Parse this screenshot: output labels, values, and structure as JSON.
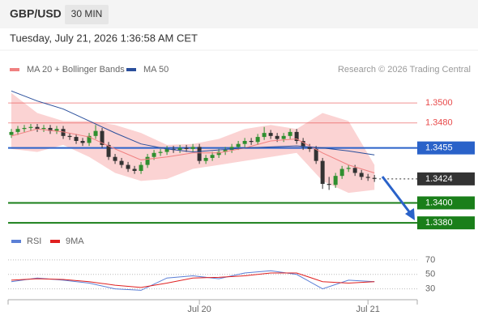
{
  "header": {
    "symbol": "GBP/USD",
    "interval": "30 MIN"
  },
  "timestamp": "Tuesday, July 21, 2026 1:36:58 AM CET",
  "chart_data": [
    {
      "type": "candlestick",
      "credit": "Research © 2026 Trading Central",
      "up_color": "#2f8f2f",
      "down_color": "#333333",
      "band_color": "#fbd3d3",
      "xlim": [
        -0.5,
        62.6
      ],
      "ylim": [
        1.3372,
        1.3522
      ],
      "x": [
        0,
        1,
        2,
        3,
        4,
        5,
        6,
        7,
        8,
        9,
        10,
        11,
        12,
        13,
        14,
        15,
        16,
        17,
        18,
        19,
        20,
        21,
        22,
        23,
        24,
        25,
        26,
        27,
        28,
        29,
        30,
        31,
        32,
        33,
        34,
        35,
        36,
        37,
        38,
        39,
        40,
        41,
        42,
        43,
        44,
        45,
        46,
        47,
        48,
        49,
        50,
        51,
        52,
        53,
        54,
        55,
        56
      ],
      "open": [
        1.3468,
        1.3471,
        1.3474,
        1.3475,
        1.3476,
        1.3474,
        1.3475,
        1.3472,
        1.3474,
        1.3467,
        1.3466,
        1.3462,
        1.346,
        1.3467,
        1.3472,
        1.3458,
        1.3446,
        1.3442,
        1.3438,
        1.3434,
        1.3432,
        1.3438,
        1.3446,
        1.345,
        1.3451,
        1.3454,
        1.3453,
        1.3455,
        1.3454,
        1.3456,
        1.3442,
        1.3445,
        1.3448,
        1.3451,
        1.3453,
        1.3456,
        1.3459,
        1.3462,
        1.3461,
        1.3466,
        1.347,
        1.3467,
        1.3464,
        1.3467,
        1.3471,
        1.3462,
        1.3456,
        1.3454,
        1.3442,
        1.3419,
        1.3418,
        1.3427,
        1.3434,
        1.3435,
        1.343,
        1.3426,
        1.3425
      ],
      "high": [
        1.3474,
        1.3477,
        1.3478,
        1.3479,
        1.3479,
        1.3478,
        1.3478,
        1.3477,
        1.3477,
        1.347,
        1.3469,
        1.3465,
        1.347,
        1.3478,
        1.3475,
        1.3461,
        1.3449,
        1.3445,
        1.3441,
        1.3437,
        1.3441,
        1.3449,
        1.3453,
        1.3454,
        1.3457,
        1.3457,
        1.3458,
        1.3458,
        1.3459,
        1.3459,
        1.3448,
        1.3451,
        1.3454,
        1.3456,
        1.3459,
        1.3462,
        1.3465,
        1.3465,
        1.3469,
        1.3476,
        1.3473,
        1.347,
        1.347,
        1.3474,
        1.3474,
        1.3465,
        1.3459,
        1.3457,
        1.3445,
        1.3426,
        1.343,
        1.3437,
        1.3438,
        1.3438,
        1.3433,
        1.3429,
        1.3428
      ],
      "low": [
        1.3465,
        1.3468,
        1.3471,
        1.3472,
        1.3471,
        1.3471,
        1.3469,
        1.3469,
        1.3464,
        1.3463,
        1.3459,
        1.3457,
        1.3457,
        1.3464,
        1.3455,
        1.3443,
        1.3439,
        1.3435,
        1.3431,
        1.3429,
        1.3429,
        1.3435,
        1.3443,
        1.3447,
        1.3448,
        1.345,
        1.345,
        1.3451,
        1.3451,
        1.3439,
        1.3439,
        1.3442,
        1.3445,
        1.3448,
        1.345,
        1.3453,
        1.3456,
        1.3458,
        1.3458,
        1.3463,
        1.3464,
        1.3461,
        1.3461,
        1.3464,
        1.3459,
        1.3453,
        1.3451,
        1.3439,
        1.3414,
        1.3413,
        1.3415,
        1.3424,
        1.3431,
        1.3427,
        1.3423,
        1.3422,
        1.3421
      ],
      "close": [
        1.3471,
        1.3474,
        1.3475,
        1.3476,
        1.3474,
        1.3475,
        1.3472,
        1.3474,
        1.3467,
        1.3466,
        1.3462,
        1.346,
        1.3467,
        1.3472,
        1.3458,
        1.3446,
        1.3442,
        1.3438,
        1.3434,
        1.3432,
        1.3438,
        1.3446,
        1.345,
        1.3451,
        1.3454,
        1.3453,
        1.3455,
        1.3454,
        1.3456,
        1.3442,
        1.3445,
        1.3448,
        1.3451,
        1.3453,
        1.3456,
        1.3459,
        1.3462,
        1.3461,
        1.3466,
        1.347,
        1.3467,
        1.3464,
        1.3467,
        1.3471,
        1.3462,
        1.3456,
        1.3454,
        1.3442,
        1.3419,
        1.3418,
        1.3427,
        1.3434,
        1.3435,
        1.343,
        1.3426,
        1.3425,
        1.3424
      ],
      "series": [
        {
          "name": "MA 20 + Bollinger Bands",
          "color": "#f08080",
          "x": [
            0,
            4,
            8,
            12,
            16,
            20,
            24,
            28,
            32,
            36,
            40,
            44,
            48,
            52,
            56
          ],
          "values": [
            1.3467,
            1.3474,
            1.3471,
            1.3466,
            1.3454,
            1.3443,
            1.3446,
            1.345,
            1.345,
            1.3455,
            1.3462,
            1.3464,
            1.345,
            1.3438,
            1.343
          ],
          "upper": [
            1.351,
            1.349,
            1.3482,
            1.3482,
            1.3478,
            1.347,
            1.3458,
            1.3459,
            1.3464,
            1.3474,
            1.3478,
            1.3474,
            1.349,
            1.3482,
            1.3438
          ],
          "lower": [
            1.3454,
            1.3451,
            1.3458,
            1.3446,
            1.343,
            1.3422,
            1.3424,
            1.3434,
            1.3438,
            1.3442,
            1.3446,
            1.345,
            1.3422,
            1.341,
            1.3413
          ]
        },
        {
          "name": "MA 50",
          "color": "#2a4f9c",
          "x": [
            0,
            4,
            8,
            12,
            16,
            20,
            24,
            28,
            32,
            36,
            40,
            44,
            48,
            52,
            56
          ],
          "values": [
            1.3512,
            1.3502,
            1.3494,
            1.3482,
            1.347,
            1.3459,
            1.3454,
            1.3451,
            1.3453,
            1.3455,
            1.3456,
            1.3457,
            1.3455,
            1.3452,
            1.3448
          ]
        }
      ],
      "levels": [
        {
          "value": 1.35,
          "label": "1.3500",
          "color": "#e84a4a",
          "boxed": false,
          "dotted": false
        },
        {
          "value": 1.348,
          "label": "1.3480",
          "color": "#e84a4a",
          "boxed": false,
          "dotted": false
        },
        {
          "value": 1.3455,
          "label": "1.3455",
          "color": "#2a62c9",
          "boxed": true,
          "dotted": false
        },
        {
          "value": 1.3424,
          "label": "1.3424",
          "color": "#333333",
          "boxed": true,
          "dotted": true
        },
        {
          "value": 1.34,
          "label": "1.3400",
          "color": "#1a7f1a",
          "boxed": true,
          "dotted": false
        },
        {
          "value": 1.338,
          "label": "1.3380",
          "color": "#1a7f1a",
          "boxed": true,
          "dotted": false
        }
      ]
    },
    {
      "type": "line",
      "xlim": [
        -0.5,
        62.6
      ],
      "ylim": [
        15,
        80
      ],
      "yticks": [
        30,
        50,
        70
      ],
      "grid": true,
      "xticks": [
        {
          "value": 29,
          "label": "Jul 20"
        },
        {
          "value": 55,
          "label": "Jul 21"
        }
      ],
      "x": [
        0,
        4,
        8,
        12,
        16,
        20,
        24,
        28,
        32,
        36,
        40,
        44,
        48,
        52,
        56
      ],
      "series": [
        {
          "name": "RSI",
          "color": "#5b7fd6",
          "values": [
            40,
            45,
            42,
            38,
            30,
            28,
            45,
            48,
            44,
            52,
            55,
            50,
            30,
            42,
            40
          ]
        },
        {
          "name": "9MA",
          "color": "#e02020",
          "values": [
            42,
            44,
            43,
            40,
            35,
            32,
            38,
            45,
            46,
            48,
            52,
            52,
            40,
            38,
            40
          ]
        }
      ]
    }
  ]
}
